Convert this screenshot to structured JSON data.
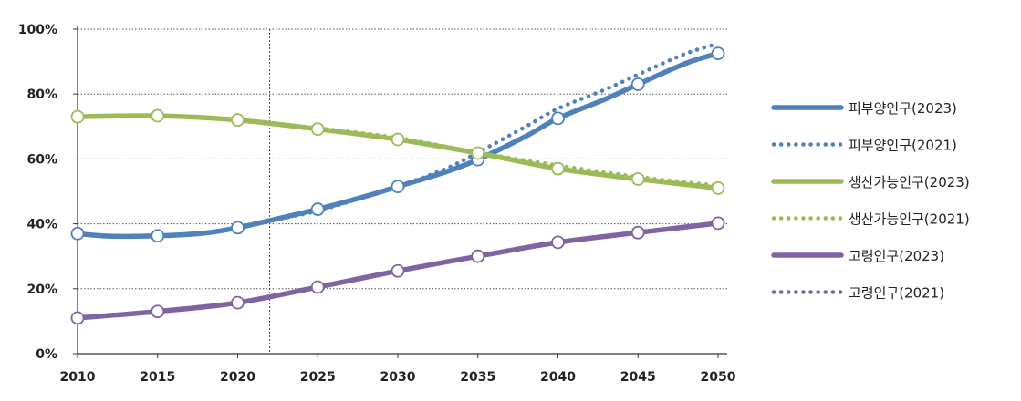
{
  "chart_data": {
    "type": "line",
    "title": "",
    "xlabel": "",
    "ylabel": "",
    "x": [
      2010,
      2015,
      2020,
      2025,
      2030,
      2035,
      2040,
      2045,
      2050
    ],
    "x_ticks": [
      "2010",
      "2015",
      "2020",
      "2025",
      "2030",
      "2035",
      "2040",
      "2045",
      "2050"
    ],
    "y_ticks": [
      "0%",
      "20%",
      "40%",
      "60%",
      "80%",
      "100%"
    ],
    "xlim": [
      2010,
      2050
    ],
    "ylim": [
      0,
      100
    ],
    "y_unit": "%",
    "grid": "horizontal-dotted",
    "reference_line_x": 2022,
    "legend_position": "right",
    "series": [
      {
        "name": "피부양인구(2023)",
        "style": "solid",
        "color": "#4f81bd",
        "markers": true,
        "points": [
          [
            2010,
            37
          ],
          [
            2012,
            36.2
          ],
          [
            2015,
            36.3
          ],
          [
            2018,
            37.2
          ],
          [
            2020,
            38.8
          ],
          [
            2022,
            41
          ],
          [
            2025,
            44.5
          ],
          [
            2028,
            48.5
          ],
          [
            2030,
            51.5
          ],
          [
            2033,
            56
          ],
          [
            2035,
            59.8
          ],
          [
            2038,
            67
          ],
          [
            2040,
            72.5
          ],
          [
            2043,
            78.5
          ],
          [
            2045,
            83
          ],
          [
            2048,
            89.5
          ],
          [
            2050,
            92.5
          ]
        ]
      },
      {
        "name": "피부양인구(2021)",
        "style": "dotted",
        "color": "#4f81bd",
        "markers": false,
        "points": [
          [
            2020,
            38.8
          ],
          [
            2022,
            41
          ],
          [
            2025,
            44
          ],
          [
            2028,
            48.5
          ],
          [
            2030,
            51.5
          ],
          [
            2033,
            57
          ],
          [
            2035,
            62
          ],
          [
            2038,
            70
          ],
          [
            2040,
            75.5
          ],
          [
            2043,
            81.5
          ],
          [
            2045,
            86
          ],
          [
            2048,
            92.5
          ],
          [
            2050,
            95.5
          ]
        ]
      },
      {
        "name": "생산가능인구(2023)",
        "style": "solid",
        "color": "#9bbb59",
        "markers": true,
        "points": [
          [
            2010,
            73
          ],
          [
            2015,
            73.3
          ],
          [
            2020,
            72
          ],
          [
            2025,
            69.2
          ],
          [
            2030,
            66
          ],
          [
            2035,
            61.8
          ],
          [
            2040,
            57
          ],
          [
            2045,
            53.8
          ],
          [
            2050,
            51
          ]
        ]
      },
      {
        "name": "생산가능인구(2021)",
        "style": "dotted",
        "color": "#9bbb59",
        "markers": false,
        "points": [
          [
            2020,
            72
          ],
          [
            2025,
            69.5
          ],
          [
            2030,
            66.5
          ],
          [
            2035,
            62
          ],
          [
            2040,
            58
          ],
          [
            2045,
            54.5
          ],
          [
            2050,
            51.8
          ]
        ]
      },
      {
        "name": "고령인구(2023)",
        "style": "solid",
        "color": "#8064a2",
        "markers": true,
        "points": [
          [
            2010,
            11
          ],
          [
            2015,
            13
          ],
          [
            2020,
            15.7
          ],
          [
            2025,
            20.5
          ],
          [
            2030,
            25.5
          ],
          [
            2035,
            30
          ],
          [
            2040,
            34.3
          ],
          [
            2045,
            37.3
          ],
          [
            2050,
            40.2
          ]
        ]
      },
      {
        "name": "고령인구(2021)",
        "style": "dotted",
        "color": "#8064a2",
        "markers": false,
        "points": [
          [
            2020,
            15.7
          ],
          [
            2025,
            20.5
          ],
          [
            2030,
            25.5
          ],
          [
            2035,
            30
          ],
          [
            2040,
            34.3
          ],
          [
            2045,
            37.3
          ],
          [
            2050,
            40.2
          ]
        ]
      }
    ]
  }
}
